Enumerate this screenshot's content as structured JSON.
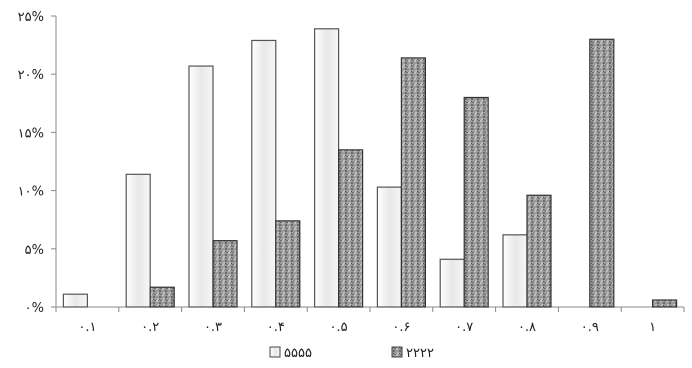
{
  "chart_data": {
    "type": "bar",
    "categories": [
      "٠.١",
      "٠.٢",
      "٠.٣",
      "٠.۴",
      "٠.۵",
      "٠.۶",
      "٠.٧",
      "٠.٨",
      "٠.٩",
      "١"
    ],
    "y_tick_labels": [
      "٠%",
      "۵%",
      "١٠%",
      "١۵%",
      "٢٠%",
      "٢۵%"
    ],
    "ylim": [
      0,
      25
    ],
    "grid": false,
    "legend_position": "bottom",
    "series": [
      {
        "name": "۵۵۵۵",
        "values": [
          1.1,
          11.4,
          20.7,
          22.9,
          23.9,
          10.3,
          4.1,
          6.2,
          0,
          0
        ],
        "color": "#e6e6e6",
        "pattern": "light"
      },
      {
        "name": "٢٢٢٢",
        "values": [
          0,
          1.7,
          5.7,
          7.4,
          13.5,
          21.4,
          18.0,
          9.6,
          23.0,
          0.6
        ],
        "color": "#8a8a8a",
        "pattern": "speckle"
      }
    ]
  }
}
